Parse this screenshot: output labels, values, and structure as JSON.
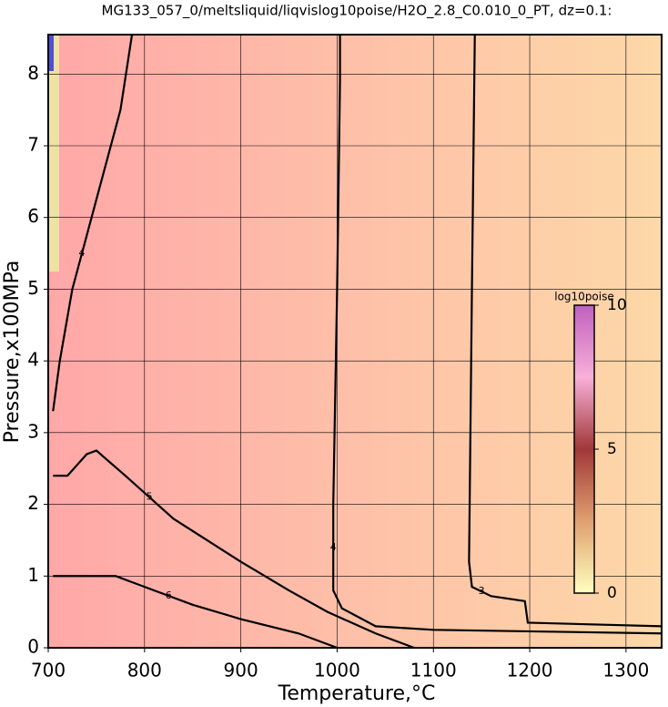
{
  "chart_data": {
    "type": "contour",
    "title": "MG133_057_0/meltsliquid/liqvislog10poise/H2O_2.8_C0.010_0_PT, dz=0.1:",
    "xlabel": "Temperature,°C",
    "ylabel": "Pressure,x100MPa",
    "xlim": [
      700,
      1337
    ],
    "ylim": [
      0,
      8.55
    ],
    "xticks": [
      700,
      800,
      900,
      1000,
      1100,
      1200,
      1300
    ],
    "yticks": [
      0,
      1,
      2,
      3,
      4,
      5,
      6,
      7,
      8
    ],
    "grid": true,
    "contours": [
      {
        "level": 3,
        "x": [
          1143,
          1140,
          1137,
          1140,
          1160,
          1195,
          1198,
          1337
        ],
        "y": [
          8.55,
          5,
          1.2,
          0.85,
          0.72,
          0.65,
          0.35,
          0.3
        ]
      },
      {
        "level": 4,
        "x": [
          1003,
          1003,
          1000,
          996,
          996,
          1005,
          1040,
          1100,
          1337
        ],
        "y": [
          8.55,
          7.9,
          5,
          2,
          0.8,
          0.55,
          0.3,
          0.25,
          0.2
        ]
      },
      {
        "level": 4,
        "x": [
          787,
          775,
          745,
          725,
          712,
          705
        ],
        "y": [
          8.55,
          7.5,
          6,
          5,
          4,
          3.3
        ]
      },
      {
        "level": 5,
        "x": [
          705,
          720,
          740,
          750,
          780,
          830,
          900,
          950,
          990,
          1040,
          1080
        ],
        "y": [
          2.4,
          2.4,
          2.7,
          2.75,
          2.4,
          1.8,
          1.2,
          0.8,
          0.5,
          0.2,
          0
        ]
      },
      {
        "level": 6,
        "x": [
          705,
          770,
          800,
          850,
          900,
          960,
          1000
        ],
        "y": [
          1.0,
          1.0,
          0.85,
          0.6,
          0.4,
          0.2,
          0
        ]
      }
    ],
    "colorbar": {
      "label": "log10poise",
      "lim": [
        0,
        10
      ],
      "ticks": [
        0,
        5,
        10
      ],
      "colors": [
        "#ffffc0",
        "#e0a070",
        "#a03838",
        "#f8b0d8",
        "#c060c0"
      ]
    },
    "background": [
      "#ffa8a8",
      "#fdd8a8"
    ]
  }
}
